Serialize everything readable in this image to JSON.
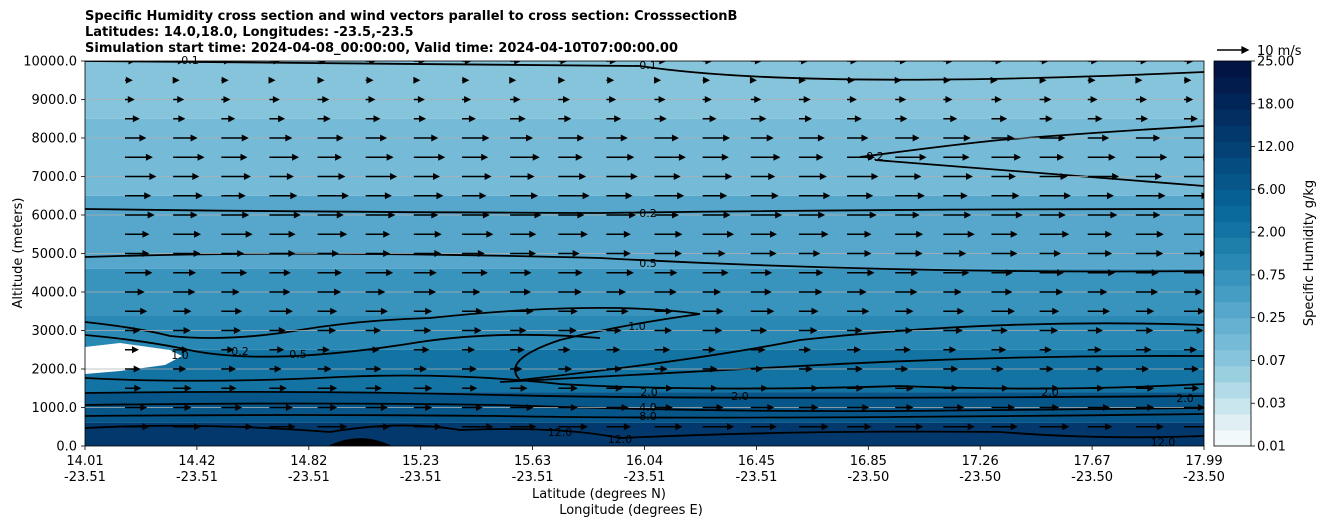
{
  "chart_data": {
    "type": "contourf",
    "title_lines": [
      "Specific Humidity cross section and wind vectors parallel to cross section: CrosssectionB",
      "Latitudes: 14.0,18.0, Longitudes: -23.5,-23.5",
      "Simulation start time: 2024-04-08_00:00:00, Valid time: 2024-04-10T07:00:00.00"
    ],
    "ylabel": "Altitude (meters)",
    "xlabel_lat": "Latitude (degrees N)",
    "xlabel_lon": "Longitude (degrees E)",
    "ylim": [
      0,
      10000
    ],
    "yticks": [
      "0.0",
      "1000.0",
      "2000.0",
      "3000.0",
      "4000.0",
      "5000.0",
      "6000.0",
      "7000.0",
      "8000.0",
      "9000.0",
      "10000.0"
    ],
    "xticks": [
      {
        "lat": "14.01",
        "lon": "-23.51"
      },
      {
        "lat": "14.42",
        "lon": "-23.51"
      },
      {
        "lat": "14.82",
        "lon": "-23.51"
      },
      {
        "lat": "15.23",
        "lon": "-23.51"
      },
      {
        "lat": "15.63",
        "lon": "-23.51"
      },
      {
        "lat": "16.04",
        "lon": "-23.51"
      },
      {
        "lat": "16.45",
        "lon": "-23.51"
      },
      {
        "lat": "16.85",
        "lon": "-23.50"
      },
      {
        "lat": "17.26",
        "lon": "-23.50"
      },
      {
        "lat": "17.67",
        "lon": "-23.50"
      },
      {
        "lat": "17.99",
        "lon": "-23.50"
      }
    ],
    "colorbar": {
      "label": "Specific Humidity g/kg",
      "ticks": [
        "0.01",
        "0.03",
        "0.07",
        "0.25",
        "0.75",
        "2.00",
        "6.00",
        "12.00",
        "18.00",
        "25.00"
      ],
      "colors": [
        "#f2f9fb",
        "#dfeff4",
        "#c9e5ee",
        "#b2dae7",
        "#9acfe0",
        "#86c4db",
        "#75bad6",
        "#66b0d1",
        "#56a7cb",
        "#469dc3",
        "#3893bd",
        "#2a89b4",
        "#1f7fab",
        "#1374a3",
        "#0a6a9b",
        "#076094",
        "#06568a",
        "#054c80",
        "#044276",
        "#03386c",
        "#032e62",
        "#022558",
        "#021c4e",
        "#011444"
      ]
    },
    "quiver_key": {
      "label": "10 m/s",
      "value_ms": 10
    },
    "contour_labels": [
      "0.1",
      "0.1",
      "0.2",
      "0.2",
      "0.2",
      "0.5",
      "0.5",
      "1.0",
      "1.0",
      "2.0",
      "2.0",
      "2.0",
      "2.0",
      "4.0",
      "8.0",
      "12.0",
      "12.0",
      "12.0"
    ],
    "humidity_bands": [
      {
        "altitude_m": 9500,
        "q_gkg": 0.07
      },
      {
        "altitude_m": 7500,
        "q_gkg": 0.15
      },
      {
        "altitude_m": 5500,
        "q_gkg": 0.35
      },
      {
        "altitude_m": 4000,
        "q_gkg": 0.7
      },
      {
        "altitude_m": 3000,
        "q_gkg": 1.1
      },
      {
        "altitude_m": 2000,
        "q_gkg": 2.5
      },
      {
        "altitude_m": 1000,
        "q_gkg": 6.0
      },
      {
        "altitude_m": 300,
        "q_gkg": 14.0
      }
    ],
    "wind": {
      "rows_altitude_m": [
        500,
        1000,
        1500,
        2000,
        2500,
        3000,
        3500,
        4000,
        4500,
        5000,
        5500,
        6000,
        6500,
        7000,
        7500,
        8000,
        8500,
        9000,
        9500,
        10000
      ],
      "columns": 23,
      "mean_speed_ms": [
        8,
        6,
        5,
        4,
        4,
        5,
        6,
        6,
        7,
        7,
        8,
        8,
        8,
        8,
        8,
        7,
        4,
        3,
        2,
        3
      ]
    }
  }
}
